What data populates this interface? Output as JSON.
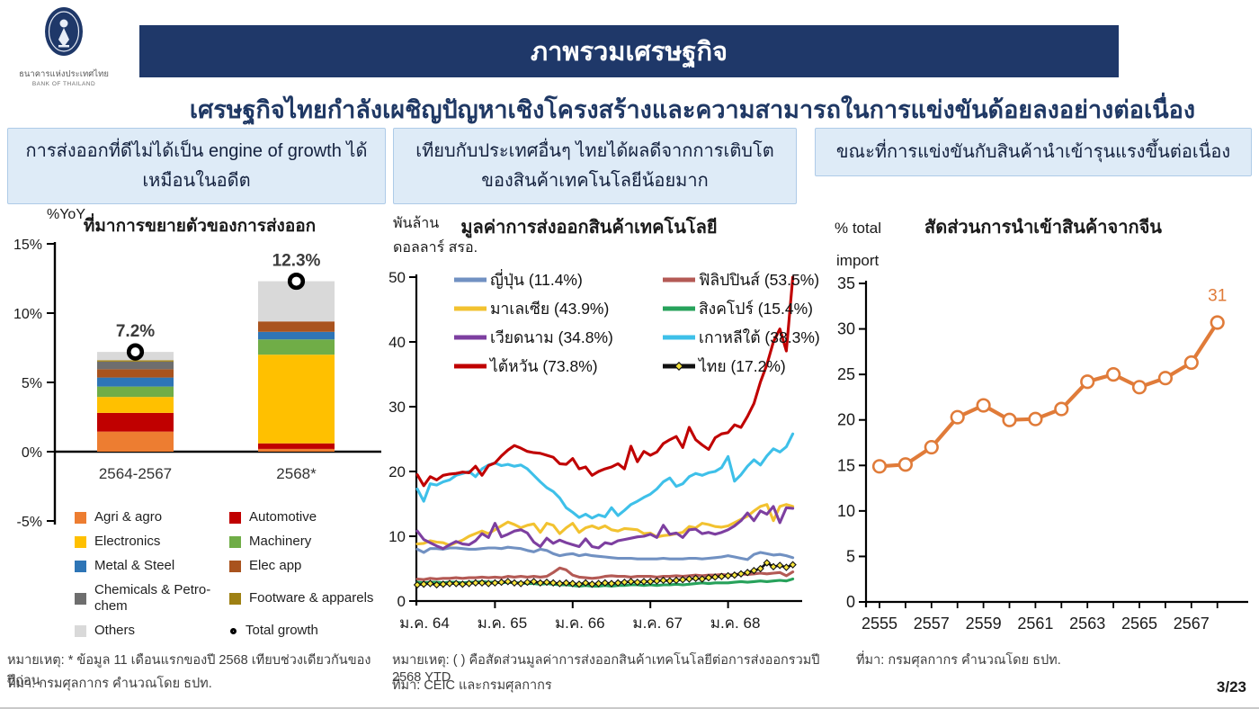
{
  "logo": {
    "org_th": "ธนาคารแห่งประเทศไทย",
    "org_en": "BANK OF THAILAND"
  },
  "header": {
    "title": "ภาพรวมเศรษฐกิจ"
  },
  "subtitle": "เศรษฐกิจไทยกำลังเผชิญปัญหาเชิงโครงสร้างและความสามารถในการแข่งขันด้อยลงอย่างต่อเนื่อง",
  "panels": {
    "left": "การส่งออกที่ดีไม่ได้เป็น engine of growth ได้เหมือนในอดีต",
    "middle": "เทียบกับประเทศอื่นๆ ไทยได้ผลดีจากการเติบโตของสินค้าเทคโนโลยีน้อยมาก",
    "right": "ขณะที่การแข่งขันกับสินค้านำเข้ารุนแรงขึ้นต่อเนื่อง"
  },
  "footnotes": {
    "left_note": "หมายเหตุ: * ข้อมูล 11 เดือนแรกของปี 2568 เทียบช่วงเดียวกันของปีก่อน",
    "left_source": "ที่มา: กรมศุลกากร คำนวณโดย ธปท.",
    "middle_note": "หมายเหตุ: ( ) คือสัดส่วนมูลค่าการส่งออกสินค้าเทคโนโลยีต่อการส่งออกรวมปี 2568 YTD",
    "middle_source": "ที่มา: CEIC และกรมศุลกากร",
    "right_source": "ที่มา: กรมศุลกากร คำนวณโดย ธปท."
  },
  "page": {
    "number": "3/23"
  },
  "chart_data": [
    {
      "type": "bar",
      "stacked": true,
      "title": "ที่มาการขยายตัวของการส่งออก",
      "ylabel": "%YoY",
      "categories": [
        "2564-2567",
        "2568*"
      ],
      "ylim": [
        -5,
        15
      ],
      "yticks": [
        15,
        10,
        5,
        0,
        -5
      ],
      "ytick_labels": [
        "15%",
        "10%",
        "5%",
        "0%",
        "-5%"
      ],
      "series": [
        {
          "name": "Agri & agro",
          "color": "#ED7D31",
          "values": [
            1.45,
            0.2
          ]
        },
        {
          "name": "Automotive",
          "color": "#C00000",
          "values": [
            1.35,
            0.4
          ]
        },
        {
          "name": "Electronics",
          "color": "#FFC000",
          "values": [
            1.15,
            6.4
          ]
        },
        {
          "name": "Machinery",
          "color": "#70AD47",
          "values": [
            0.75,
            1.1
          ]
        },
        {
          "name": "Metal & Steel",
          "color": "#2E75B6",
          "values": [
            0.65,
            0.55
          ]
        },
        {
          "name": "Elec app",
          "color": "#A9531E",
          "values": [
            0.6,
            0.75
          ]
        },
        {
          "name": "Chemicals & Petro-chem",
          "color": "#6E6E6E",
          "values": [
            0.55,
            0
          ]
        },
        {
          "name": "Footware & apparels",
          "color": "#9E8013",
          "values": [
            0.1,
            0
          ]
        },
        {
          "name": "Others",
          "color": "#D9D9D9",
          "values": [
            0.6,
            2.9
          ]
        }
      ],
      "totals": [
        7.2,
        12.3
      ],
      "total_labels": [
        "7.2%",
        "12.3%"
      ],
      "total_marker_label": "Total growth"
    },
    {
      "type": "line",
      "title": "มูลค่าการส่งออกสินค้าเทคโนโลยี",
      "ylabel_lines": [
        "พันล้าน",
        "ดอลลาร์ สรอ."
      ],
      "ylim": [
        0,
        50
      ],
      "yticks": [
        0,
        10,
        20,
        30,
        40,
        50
      ],
      "x_tick_labels": [
        "ม.ค. 64",
        "ม.ค. 65",
        "ม.ค. 66",
        "ม.ค. 67",
        "ม.ค. 68"
      ],
      "x_tick_month_index": [
        0,
        12,
        24,
        36,
        48
      ],
      "series": [
        {
          "name": "ญี่ปุ่น (11.4%)",
          "color": "#7191C2",
          "marker": "none",
          "values": [
            8.0,
            7.5,
            8.1,
            8.1,
            8.0,
            8.2,
            8.2,
            8.1,
            8.0,
            8.0,
            8.1,
            8.2,
            8.2,
            8.1,
            8.3,
            8.2,
            8.1,
            7.8,
            7.6,
            8.0,
            7.8,
            7.3,
            7.0,
            7.2,
            7.3,
            7.0,
            7.2,
            7.0,
            6.9,
            6.8,
            6.7,
            6.6,
            6.6,
            6.6,
            6.5,
            6.5,
            6.5,
            6.5,
            6.6,
            6.5,
            6.5,
            6.5,
            6.6,
            6.6,
            6.5,
            6.6,
            6.7,
            6.8,
            7.0,
            6.8,
            6.6,
            6.4,
            7.2,
            7.5,
            7.3,
            7.1,
            7.2,
            7.0,
            6.7
          ]
        },
        {
          "name": "ฟิลิปปินส์ (53.5%)",
          "color": "#B45A55",
          "marker": "none",
          "values": [
            3.4,
            3.3,
            3.5,
            3.4,
            3.5,
            3.5,
            3.6,
            3.5,
            3.6,
            3.6,
            3.7,
            3.6,
            3.7,
            3.6,
            3.8,
            3.7,
            3.8,
            3.7,
            3.8,
            3.7,
            3.8,
            4.4,
            5.1,
            4.8,
            4.0,
            3.7,
            3.6,
            3.5,
            3.6,
            3.8,
            3.9,
            3.8,
            3.8,
            3.7,
            3.8,
            3.8,
            3.8,
            3.7,
            3.8,
            3.8,
            3.9,
            3.8,
            3.9,
            4.0,
            3.9,
            4.0,
            4.0,
            4.1,
            4.0,
            4.1,
            4.2,
            4.1,
            4.2,
            4.3,
            4.2,
            4.3,
            4.4,
            3.9,
            4.5
          ]
        },
        {
          "name": "มาเลเซีย (43.9%)",
          "color": "#F2C230",
          "marker": "none",
          "values": [
            8.8,
            8.9,
            9.3,
            9.1,
            9.0,
            8.6,
            9.0,
            9.4,
            10.0,
            10.4,
            10.8,
            10.4,
            11.0,
            11.6,
            12.2,
            11.8,
            11.3,
            11.7,
            11.9,
            10.6,
            12.0,
            11.7,
            10.4,
            11.3,
            12.0,
            10.6,
            11.3,
            11.6,
            11.2,
            11.6,
            11.0,
            10.8,
            11.2,
            11.1,
            11.0,
            10.4,
            10.5,
            9.9,
            10.1,
            10.2,
            10.4,
            10.6,
            11.5,
            11.3,
            12.0,
            11.8,
            11.5,
            11.4,
            11.6,
            12.1,
            12.6,
            13.1,
            13.9,
            14.6,
            14.9,
            12.4,
            14.6,
            14.9,
            14.6
          ]
        },
        {
          "name": "สิงคโปร์ (15.4%)",
          "color": "#27A25B",
          "marker": "none",
          "values": [
            2.9,
            2.8,
            2.9,
            2.9,
            2.8,
            2.9,
            2.9,
            2.8,
            2.9,
            2.9,
            3.0,
            2.9,
            2.9,
            2.8,
            2.9,
            2.8,
            2.8,
            2.7,
            2.7,
            2.6,
            2.7,
            2.6,
            2.5,
            2.5,
            2.4,
            2.3,
            2.4,
            2.3,
            2.3,
            2.4,
            2.3,
            2.4,
            2.4,
            2.5,
            2.5,
            2.4,
            2.5,
            2.4,
            2.5,
            2.5,
            2.6,
            2.5,
            2.6,
            2.7,
            2.8,
            2.7,
            2.8,
            2.8,
            2.8,
            2.9,
            3.0,
            2.9,
            3.0,
            3.1,
            3.0,
            3.1,
            3.2,
            3.1,
            3.4
          ]
        },
        {
          "name": "เวียดนาม (34.8%)",
          "color": "#7D3FA0",
          "marker": "none",
          "values": [
            10.8,
            9.5,
            9.0,
            8.5,
            8.1,
            8.7,
            9.2,
            8.8,
            8.7,
            9.3,
            10.4,
            9.8,
            12.0,
            9.9,
            10.3,
            10.8,
            11.0,
            10.5,
            9.1,
            8.4,
            9.7,
            8.9,
            9.4,
            9.0,
            8.7,
            8.4,
            9.6,
            8.4,
            8.2,
            9.0,
            8.8,
            9.3,
            9.5,
            9.7,
            9.9,
            10.0,
            10.3,
            9.8,
            11.7,
            10.3,
            10.5,
            9.8,
            11.0,
            11.1,
            10.4,
            10.6,
            10.3,
            10.6,
            11.0,
            11.6,
            12.4,
            13.6,
            12.4,
            13.9,
            13.4,
            14.6,
            12.1,
            14.4,
            14.3
          ]
        },
        {
          "name": "เกาหลีใต้ (38.3%)",
          "color": "#3EC0E9",
          "marker": "none",
          "values": [
            17.3,
            15.4,
            18.1,
            17.9,
            18.4,
            18.7,
            19.4,
            19.7,
            20.0,
            19.2,
            20.4,
            21.0,
            21.3,
            20.9,
            21.1,
            20.8,
            21.0,
            20.4,
            19.4,
            18.4,
            17.5,
            16.9,
            15.9,
            14.4,
            13.7,
            12.9,
            13.4,
            12.8,
            13.3,
            13.0,
            14.4,
            13.2,
            14.0,
            14.9,
            15.4,
            16.0,
            16.5,
            17.3,
            18.4,
            19.0,
            17.7,
            18.1,
            19.2,
            19.7,
            19.4,
            19.8,
            20.0,
            20.6,
            22.3,
            18.5,
            19.5,
            20.8,
            21.8,
            21.0,
            22.4,
            23.5,
            23.0,
            23.8,
            25.8
          ]
        },
        {
          "name": "ไต้หวัน (73.8%)",
          "color": "#C00000",
          "marker": "none",
          "values": [
            19.5,
            17.8,
            19.2,
            18.7,
            19.4,
            19.6,
            19.7,
            19.9,
            19.8,
            20.8,
            19.4,
            20.9,
            21.3,
            22.4,
            23.3,
            24.0,
            23.6,
            23.1,
            22.9,
            22.8,
            22.5,
            22.2,
            21.2,
            21.1,
            22.0,
            20.4,
            20.7,
            19.4,
            20.0,
            20.4,
            20.7,
            21.2,
            20.4,
            23.9,
            21.5,
            23.1,
            22.5,
            23.0,
            24.3,
            24.9,
            25.4,
            23.7,
            26.8,
            24.9,
            24.1,
            23.4,
            25.2,
            25.8,
            26.0,
            27.2,
            26.8,
            28.5,
            30.5,
            33.8,
            36.5,
            40.0,
            42.0,
            38.6,
            50.0
          ]
        },
        {
          "name": "ไทย (17.2%)",
          "color": "#111111",
          "marker": "diamond",
          "marker_fill": "#F7E53B",
          "values": [
            2.5,
            2.6,
            2.7,
            2.5,
            2.6,
            2.7,
            2.7,
            2.6,
            2.7,
            2.8,
            2.8,
            2.7,
            2.8,
            2.9,
            3.0,
            2.8,
            2.7,
            2.9,
            3.0,
            2.8,
            2.9,
            2.8,
            2.7,
            2.8,
            2.7,
            2.6,
            2.8,
            2.6,
            2.7,
            2.8,
            2.7,
            2.8,
            2.9,
            3.0,
            2.9,
            3.0,
            3.0,
            3.1,
            3.2,
            3.1,
            3.2,
            3.3,
            3.4,
            3.5,
            3.4,
            3.6,
            3.7,
            3.8,
            3.9,
            4.0,
            4.2,
            4.4,
            4.7,
            5.0,
            5.9,
            5.3,
            5.5,
            5.2,
            5.6
          ]
        }
      ]
    },
    {
      "type": "line",
      "title": "สัดส่วนการนำเข้าสินค้าจากจีน",
      "ylabel_lines": [
        "% total",
        "import"
      ],
      "ylim": [
        0,
        35
      ],
      "yticks": [
        0,
        5,
        10,
        15,
        20,
        25,
        30,
        35
      ],
      "x": [
        2555,
        2556,
        2557,
        2558,
        2559,
        2560,
        2561,
        2562,
        2563,
        2564,
        2565,
        2566,
        2567,
        2568
      ],
      "x_tick_labels": [
        "2555",
        "2557",
        "2559",
        "2561",
        "2563",
        "2565",
        "2567"
      ],
      "values": [
        14.9,
        15.1,
        17.0,
        20.3,
        21.6,
        20.0,
        20.1,
        21.2,
        24.2,
        25.0,
        23.6,
        24.6,
        26.3,
        30.7
      ],
      "color": "#E07B39",
      "end_label": "31"
    }
  ]
}
